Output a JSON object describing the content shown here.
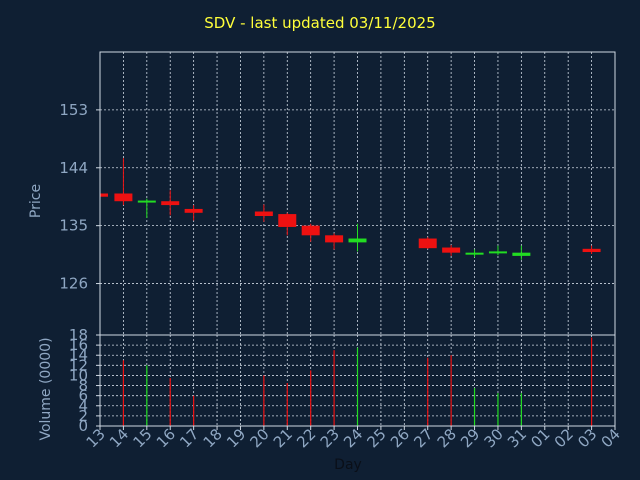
{
  "chart_data": [
    {
      "type": "candlestick",
      "title": "SDV - last updated 03/11/2025",
      "xlabel": "Day",
      "ylabel": "Price",
      "ylim": [
        118,
        162
      ],
      "yticks": [
        126,
        135,
        144,
        153
      ],
      "grid": true,
      "colors": {
        "up": "#22dd22",
        "down": "#ee1111",
        "grid": "#cfd8e3",
        "text": "#8fa7c3",
        "title": "#ffff3a",
        "background": "#0f1f33"
      },
      "x": [
        "13",
        "14",
        "15",
        "16",
        "17",
        "18",
        "19",
        "20",
        "21",
        "22",
        "23",
        "24",
        "25",
        "26",
        "27",
        "28",
        "29",
        "30",
        "31",
        "01",
        "02",
        "03",
        "04"
      ],
      "candles": [
        {
          "day": "13",
          "open": 140.0,
          "high": 140.3,
          "low": 139.5,
          "close": 139.5
        },
        {
          "day": "14",
          "open": 140.0,
          "high": 145.5,
          "low": 138.2,
          "close": 138.8
        },
        {
          "day": "15",
          "open": 138.6,
          "high": 139.2,
          "low": 136.2,
          "close": 138.9
        },
        {
          "day": "16",
          "open": 138.8,
          "high": 140.5,
          "low": 136.6,
          "close": 138.2
        },
        {
          "day": "17",
          "open": 137.6,
          "high": 138.2,
          "low": 135.8,
          "close": 137.0
        },
        {
          "day": "20",
          "open": 137.2,
          "high": 138.3,
          "low": 135.6,
          "close": 136.5
        },
        {
          "day": "21",
          "open": 136.8,
          "high": 137.0,
          "low": 133.5,
          "close": 134.8
        },
        {
          "day": "22",
          "open": 135.0,
          "high": 135.3,
          "low": 132.5,
          "close": 133.5
        },
        {
          "day": "23",
          "open": 133.5,
          "high": 133.8,
          "low": 131.3,
          "close": 132.4
        },
        {
          "day": "24",
          "open": 132.4,
          "high": 135.3,
          "low": 131.0,
          "close": 133.0
        },
        {
          "day": "27",
          "open": 133.0,
          "high": 133.2,
          "low": 131.4,
          "close": 131.5
        },
        {
          "day": "28",
          "open": 131.6,
          "high": 132.0,
          "low": 130.3,
          "close": 130.8
        },
        {
          "day": "29",
          "open": 130.6,
          "high": 131.3,
          "low": 130.1,
          "close": 130.8
        },
        {
          "day": "30",
          "open": 130.8,
          "high": 131.9,
          "low": 130.4,
          "close": 131.0
        },
        {
          "day": "31",
          "open": 130.3,
          "high": 131.9,
          "low": 129.7,
          "close": 130.8
        },
        {
          "day": "03",
          "open": 131.4,
          "high": 131.9,
          "low": 130.6,
          "close": 130.9
        }
      ]
    },
    {
      "type": "bar",
      "ylabel": "Volume (0000)",
      "ylim": [
        0,
        18
      ],
      "yticks": [
        0,
        2,
        4,
        6,
        8,
        10,
        12,
        14,
        16,
        18
      ],
      "categories": [
        "13",
        "14",
        "15",
        "16",
        "17",
        "20",
        "21",
        "22",
        "23",
        "24",
        "27",
        "28",
        "29",
        "30",
        "31",
        "03"
      ],
      "values": [
        0,
        13,
        12,
        9.5,
        6,
        10,
        8.5,
        11,
        15,
        15.5,
        13.5,
        14,
        7.5,
        6.5,
        6.5,
        17.5
      ],
      "directions": [
        "down",
        "down",
        "up",
        "down",
        "down",
        "down",
        "down",
        "down",
        "down",
        "up",
        "down",
        "down",
        "up",
        "up",
        "up",
        "down"
      ]
    }
  ]
}
